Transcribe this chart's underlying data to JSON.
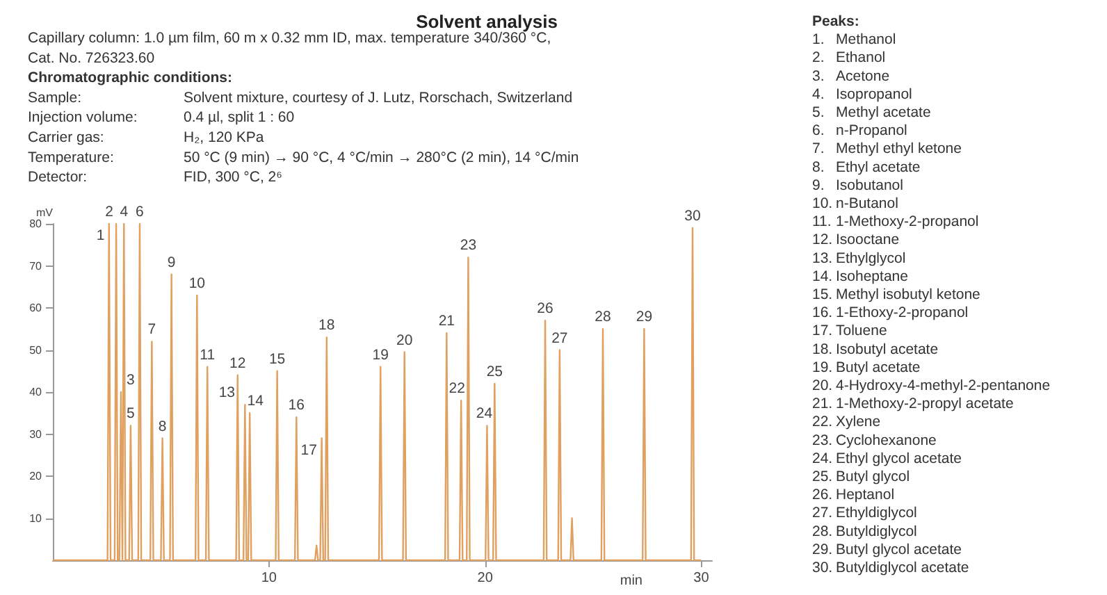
{
  "chart_data": {
    "type": "line",
    "title": "Solvent analysis",
    "xlabel": "min",
    "ylabel": "mV",
    "color": "#e0a060",
    "marker": "none",
    "xlim": [
      0,
      30.5
    ],
    "xticks": [
      10,
      20,
      30
    ],
    "ylim": [
      0,
      80
    ],
    "yticks": [
      10,
      20,
      30,
      40,
      50,
      60,
      70,
      80
    ],
    "x": [
      0,
      2.53,
      2.6,
      2.67,
      2.86,
      2.93,
      3.0,
      3.08,
      3.15,
      3.22,
      3.29,
      3.36,
      3.53,
      3.6,
      3.67,
      3.95,
      4.02,
      4.09,
      4.51,
      4.58,
      4.65,
      5.0,
      5.07,
      5.14,
      5.42,
      5.49,
      5.56,
      6.6,
      6.67,
      6.74,
      7.08,
      7.15,
      7.22,
      8.48,
      8.55,
      8.62,
      8.82,
      8.89,
      8.96,
      9.04,
      9.11,
      9.18,
      10.31,
      10.38,
      10.45,
      11.2,
      11.27,
      11.34,
      12.13,
      12.2,
      12.27,
      12.37,
      12.44,
      12.51,
      12.6,
      12.67,
      12.74,
      15.09,
      15.16,
      15.23,
      16.2,
      16.27,
      16.34,
      18.15,
      18.22,
      18.29,
      18.82,
      18.89,
      18.96,
      19.15,
      19.22,
      19.29,
      20.02,
      20.09,
      20.16,
      20.37,
      20.44,
      20.51,
      22.71,
      22.78,
      22.85,
      23.38,
      23.45,
      23.52,
      23.95,
      24.02,
      24.09,
      25.38,
      25.45,
      25.52,
      27.29,
      27.36,
      27.43,
      29.53,
      29.6,
      29.67,
      30
    ],
    "values": [
      0,
      0,
      80,
      0,
      0,
      80,
      0,
      0,
      40,
      0,
      80,
      0,
      0,
      32,
      0,
      0,
      80,
      0,
      0,
      52,
      0,
      0,
      29,
      0,
      0,
      68,
      0,
      0,
      63,
      0,
      0,
      46,
      0,
      0,
      44,
      0,
      0,
      37,
      0,
      0,
      35,
      0,
      0,
      45,
      0,
      0,
      34,
      0,
      0,
      3.5,
      0,
      0,
      29,
      0,
      0,
      53,
      0,
      0,
      46,
      0,
      0,
      49.5,
      0,
      0,
      54,
      0,
      0,
      38,
      0,
      0,
      72,
      0,
      0,
      32,
      0,
      0,
      42,
      0,
      0,
      57,
      0,
      0,
      50,
      0,
      0,
      10,
      0,
      0,
      55,
      0,
      0,
      55,
      0,
      0,
      79,
      0,
      0
    ],
    "annotations": [
      "Capillary column: 1.0 µm film, 60 m x 0.32 mm ID, max. temperature 340/360 °C,",
      "Cat. No. 726323.60",
      "Chromatographic conditions:",
      "Sample:\tSolvent mixture, courtesy of J. Lutz, Rorschach, Switzerland",
      "Injection volume:\t0.4 µl, split 1 : 60",
      "Carrier gas:\tH₂, 120 KPa",
      "Temperature:\t50 °C (9 min) → 90 °C, 4 °C/min → 280°C (2 min), 14 °C/min",
      "Detector:\tFID, 300 °C, 2⁶",
      "Peaks:",
      "1.\tMethanol",
      "2.\tEthanol",
      "3.\tAcetone",
      "4.\tIsopropanol",
      "5.\tMethyl acetate",
      "6.\tn-Propanol",
      "7.\tMethyl ethyl ketone",
      "8.\tEthyl acetate",
      "9.\tIsobutanol",
      "10.\tn-Butanol",
      "11.\t1-Methoxy-2-propanol",
      "12.\tIsooctane",
      "13.\tEthylglycol",
      "14.\tIsoheptane",
      "15.\tMethyl isobutyl ketone",
      "16.\t1-Ethoxy-2-propanol",
      "17.\tToluene",
      "18.\tIsobutyl acetate",
      "19.\tButyl acetate",
      "20.\t4-Hydroxy-4-methyl-2-pentanone",
      "21.\t1-Methoxy-2-propyl acetate",
      "22.\tXylene",
      "23.\tCyclohexanone",
      "24.\tEthyl glycol acetate",
      "25.\tButyl glycol",
      "26.\tHeptanol",
      "27.\tEthyldiglycol",
      "28.\tButyldiglycol",
      "29.\tButyl glycol acetate",
      "30.\tButyldiglycol acetate",
      {
        "text": "1",
        "x": 2.6,
        "y": 80
      },
      {
        "text": "2",
        "x": 2.93,
        "y": 80
      },
      {
        "text": "3",
        "x": 3.15,
        "y": 40
      },
      {
        "text": "4",
        "x": 3.29,
        "y": 80
      },
      {
        "text": "5",
        "x": 3.6,
        "y": 32
      },
      {
        "text": "6",
        "x": 4.02,
        "y": 80
      },
      {
        "text": "7",
        "x": 4.58,
        "y": 52
      },
      {
        "text": "8",
        "x": 5.07,
        "y": 29
      },
      {
        "text": "9",
        "x": 5.49,
        "y": 68
      },
      {
        "text": "10",
        "x": 6.67,
        "y": 63
      },
      {
        "text": "11",
        "x": 7.15,
        "y": 46
      },
      {
        "text": "12",
        "x": 8.55,
        "y": 44
      },
      {
        "text": "13",
        "x": 8.89,
        "y": 37
      },
      {
        "text": "14",
        "x": 9.11,
        "y": 35
      },
      {
        "text": "15",
        "x": 10.38,
        "y": 45
      },
      {
        "text": "16",
        "x": 11.27,
        "y": 34
      },
      {
        "text": "17",
        "x": 12.44,
        "y": 29
      },
      {
        "text": "18",
        "x": 12.67,
        "y": 53
      },
      {
        "text": "19",
        "x": 15.16,
        "y": 46
      },
      {
        "text": "20",
        "x": 16.27,
        "y": 49.5
      },
      {
        "text": "21",
        "x": 18.22,
        "y": 54
      },
      {
        "text": "22",
        "x": 18.89,
        "y": 38
      },
      {
        "text": "23",
        "x": 19.22,
        "y": 72
      },
      {
        "text": "24",
        "x": 20.09,
        "y": 32
      },
      {
        "text": "25",
        "x": 20.44,
        "y": 42
      },
      {
        "text": "26",
        "x": 22.78,
        "y": 57
      },
      {
        "text": "27",
        "x": 23.45,
        "y": 50
      },
      {
        "text": "28",
        "x": 25.45,
        "y": 55
      },
      {
        "text": "29",
        "x": 27.36,
        "y": 55
      },
      {
        "text": "30",
        "x": 29.6,
        "y": 79
      }
    ]
  }
}
